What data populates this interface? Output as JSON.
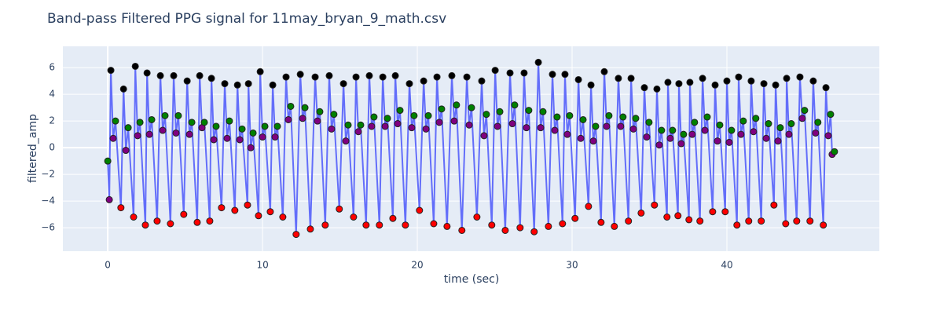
{
  "chart_data": {
    "type": "scatter",
    "title": "Band-pass Filtered PPG signal for 11may_bryan_9_math.csv",
    "x_label": "time (sec)",
    "y_label": "filtered_amp",
    "xlim": [
      -2.9,
      49.85
    ],
    "ylim": [
      -7.76,
      7.6
    ],
    "xticks": [
      0,
      10,
      20,
      30,
      40
    ],
    "yticks": [
      {
        "value": -6,
        "label": "−6"
      },
      {
        "value": -4,
        "label": "−4"
      },
      {
        "value": -2,
        "label": "−2"
      },
      0,
      2,
      4,
      6
    ],
    "grid": true,
    "line_color": "#636efa",
    "series": [
      {
        "color": "black",
        "x": [
          0.2,
          1.02,
          1.78,
          2.54,
          3.4,
          4.26,
          5.13,
          5.94,
          6.7,
          7.56,
          8.38,
          9.09,
          9.85,
          10.66,
          11.52,
          12.44,
          13.4,
          14.31,
          15.23,
          16.04,
          16.9,
          17.77,
          18.58,
          19.49,
          20.41,
          21.27,
          22.23,
          23.2,
          24.16,
          25.03,
          25.99,
          26.9,
          27.82,
          28.73,
          29.54,
          30.41,
          31.22,
          32.08,
          32.99,
          33.81,
          34.67,
          35.48,
          36.19,
          36.9,
          37.61,
          38.43,
          39.24,
          40,
          40.76,
          41.57,
          42.39,
          43.15,
          43.86,
          44.72,
          45.58,
          46.4
        ],
        "values": [
          5.8,
          4.4,
          6.1,
          5.6,
          5.4,
          5.4,
          5.0,
          5.4,
          5.2,
          4.8,
          4.7,
          4.8,
          5.7,
          4.7,
          5.3,
          5.5,
          5.3,
          5.4,
          4.8,
          5.3,
          5.4,
          5.3,
          5.4,
          4.8,
          5.0,
          5.3,
          5.4,
          5.3,
          5.0,
          5.8,
          5.6,
          5.6,
          6.4,
          5.5,
          5.5,
          5.1,
          4.7,
          5.7,
          5.2,
          5.2,
          4.5,
          4.4,
          4.9,
          4.8,
          4.9,
          5.2,
          4.7,
          5.0,
          5.3,
          5.0,
          4.8,
          4.7,
          5.2,
          5.3,
          5.0,
          4.5
        ]
      },
      {
        "color": "red",
        "x": [
          0.85,
          1.67,
          2.43,
          3.19,
          4.05,
          4.91,
          5.78,
          6.59,
          7.35,
          8.21,
          9.03,
          9.74,
          10.5,
          11.31,
          12.17,
          13.09,
          14.05,
          14.96,
          15.88,
          16.69,
          17.55,
          18.42,
          19.23,
          20.14,
          21.06,
          21.92,
          22.88,
          23.85,
          24.81,
          25.68,
          26.64,
          27.55,
          28.47,
          29.38,
          30.19,
          31.06,
          31.87,
          32.73,
          33.64,
          34.46,
          35.32,
          36.13,
          36.84,
          37.55,
          38.26,
          39.08,
          39.89,
          40.65,
          41.41,
          42.22,
          43.04,
          43.8,
          44.51,
          45.37,
          46.23
        ],
        "values": [
          -4.5,
          -5.2,
          -5.8,
          -5.5,
          -5.7,
          -5.0,
          -5.6,
          -5.5,
          -4.5,
          -4.7,
          -4.3,
          -5.1,
          -4.8,
          -5.2,
          -6.5,
          -6.1,
          -5.8,
          -4.6,
          -5.2,
          -5.8,
          -5.8,
          -5.3,
          -5.8,
          -4.7,
          -5.7,
          -5.9,
          -6.2,
          -5.2,
          -5.8,
          -6.2,
          -6.0,
          -6.3,
          -5.9,
          -5.7,
          -5.3,
          -4.4,
          -5.6,
          -5.9,
          -5.5,
          -4.9,
          -4.3,
          -5.2,
          -5.1,
          -5.4,
          -5.5,
          -4.8,
          -4.8,
          -5.8,
          -5.5,
          -5.5,
          -4.3,
          -5.7,
          -5.5,
          -5.5,
          -5.8
        ]
      },
      {
        "color": "purple",
        "x": [
          0.1,
          0.35,
          1.17,
          1.93,
          2.69,
          3.55,
          4.41,
          5.28,
          6.09,
          6.85,
          7.71,
          8.53,
          9.24,
          10,
          10.81,
          11.67,
          12.59,
          13.55,
          14.46,
          15.38,
          16.19,
          17.05,
          17.92,
          18.73,
          19.64,
          20.56,
          21.42,
          22.38,
          23.35,
          24.31,
          25.18,
          26.14,
          27.05,
          27.97,
          28.88,
          29.69,
          30.56,
          31.37,
          32.23,
          33.14,
          33.96,
          34.82,
          35.63,
          36.34,
          37.05,
          37.76,
          38.58,
          39.39,
          40.15,
          40.91,
          41.72,
          42.54,
          43.3,
          44.01,
          44.87,
          45.73,
          46.55,
          46.8
        ],
        "values": [
          -3.9,
          0.7,
          -0.2,
          0.9,
          1.0,
          1.3,
          1.1,
          1.0,
          1.5,
          0.6,
          0.7,
          0.6,
          0.0,
          0.8,
          0.8,
          2.1,
          2.2,
          2.0,
          1.4,
          0.5,
          1.2,
          1.6,
          1.6,
          1.8,
          1.5,
          1.4,
          1.9,
          2.0,
          1.7,
          0.9,
          1.6,
          1.8,
          1.5,
          1.5,
          1.3,
          1.0,
          0.7,
          0.5,
          1.6,
          1.6,
          1.4,
          0.8,
          0.2,
          0.7,
          0.3,
          1.0,
          1.3,
          0.5,
          0.4,
          1.0,
          1.2,
          0.7,
          0.5,
          1.0,
          2.2,
          1.1,
          0.9,
          -0.5
        ]
      },
      {
        "color": "green",
        "x": [
          0,
          0.5,
          1.32,
          2.08,
          2.84,
          3.7,
          4.56,
          5.43,
          6.24,
          7,
          7.86,
          8.68,
          9.39,
          10.15,
          10.96,
          11.82,
          12.74,
          13.7,
          14.61,
          15.53,
          16.34,
          17.2,
          18.07,
          18.88,
          19.79,
          20.71,
          21.57,
          22.53,
          23.5,
          24.46,
          25.33,
          26.29,
          27.2,
          28.12,
          29.03,
          29.84,
          30.71,
          31.52,
          32.38,
          33.29,
          34.11,
          34.97,
          35.78,
          36.49,
          37.2,
          37.91,
          38.73,
          39.54,
          40.3,
          41.06,
          41.87,
          42.69,
          43.45,
          44.16,
          45.02,
          45.88,
          46.7,
          46.95
        ],
        "values": [
          -1.0,
          2.0,
          1.5,
          1.9,
          2.1,
          2.4,
          2.4,
          1.9,
          1.9,
          1.6,
          2.0,
          1.4,
          1.1,
          1.6,
          1.6,
          3.1,
          3.0,
          2.7,
          2.5,
          1.7,
          1.7,
          2.3,
          2.2,
          2.8,
          2.4,
          2.4,
          2.9,
          3.2,
          3.0,
          2.5,
          2.7,
          3.2,
          2.8,
          2.7,
          2.3,
          2.4,
          2.1,
          1.6,
          2.4,
          2.3,
          2.2,
          1.9,
          1.3,
          1.3,
          1.0,
          1.9,
          2.3,
          1.7,
          1.3,
          2.0,
          2.2,
          1.8,
          1.5,
          1.8,
          2.8,
          1.9,
          2.5,
          -0.3
        ]
      }
    ]
  }
}
